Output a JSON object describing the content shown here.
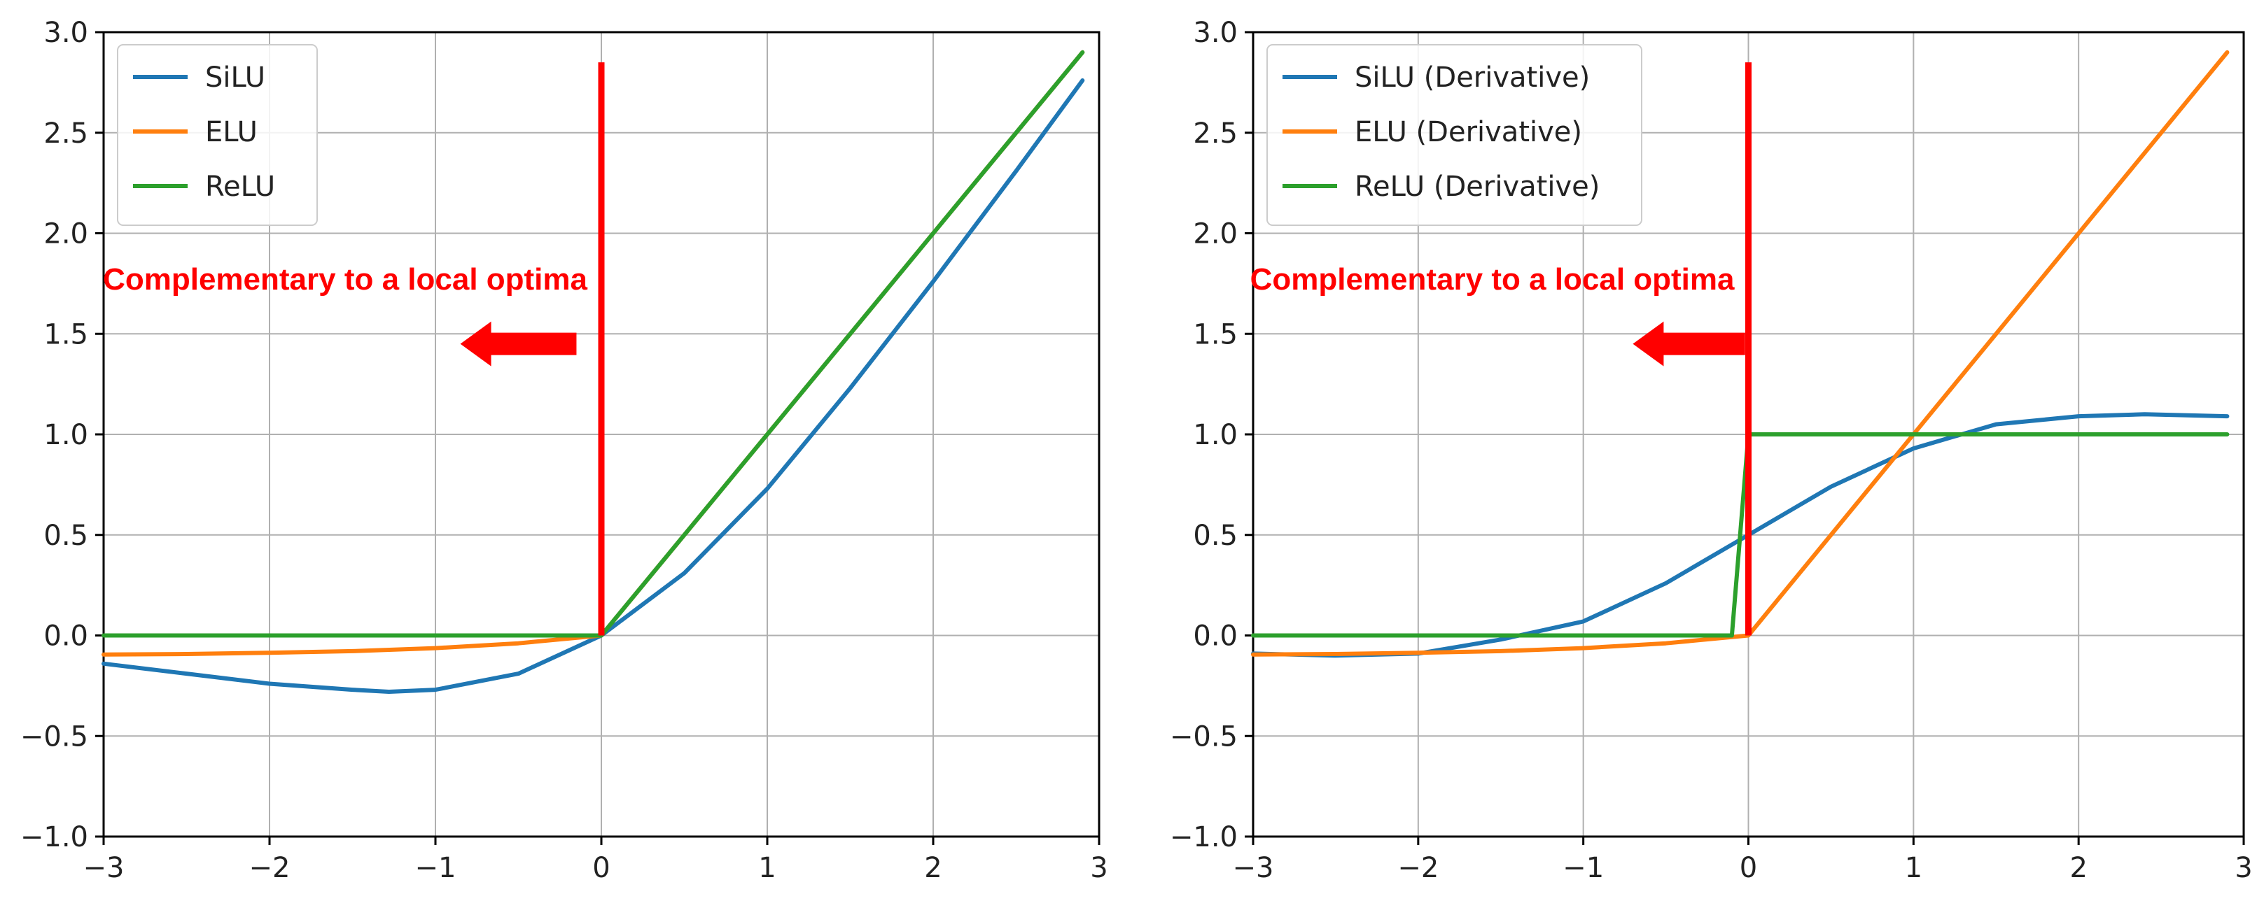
{
  "chart_data": [
    {
      "type": "line",
      "title": "",
      "xlabel": "",
      "ylabel": "",
      "xlim": [
        -3,
        3
      ],
      "ylim": [
        -1.0,
        3.0
      ],
      "xticks": [
        -3,
        -2,
        -1,
        0,
        1,
        2,
        3
      ],
      "xtick_labels": [
        "−3",
        "−2",
        "−1",
        "0",
        "1",
        "2",
        "3"
      ],
      "yticks": [
        -1.0,
        -0.5,
        0.0,
        0.5,
        1.0,
        1.5,
        2.0,
        2.5,
        3.0
      ],
      "ytick_labels": [
        "−1.0",
        "−0.5",
        "0.0",
        "0.5",
        "1.0",
        "1.5",
        "2.0",
        "2.5",
        "3.0"
      ],
      "grid": true,
      "legend_position": "top-left",
      "series": [
        {
          "name": "SiLU",
          "color": "#1f77b4",
          "x": [
            -3,
            -2.5,
            -2,
            -1.5,
            -1.28,
            -1,
            -0.5,
            0,
            0.5,
            1,
            1.5,
            2,
            2.5,
            2.9
          ],
          "y": [
            -0.14,
            -0.19,
            -0.24,
            -0.27,
            -0.28,
            -0.27,
            -0.19,
            0,
            0.31,
            0.73,
            1.23,
            1.76,
            2.31,
            2.76
          ]
        },
        {
          "name": "ELU",
          "color": "#ff7f0e",
          "x": [
            -3,
            -2.5,
            -2,
            -1.5,
            -1,
            -0.5,
            0,
            0.5,
            1,
            1.5,
            2,
            2.5,
            2.9
          ],
          "y": [
            -0.095,
            -0.092,
            -0.086,
            -0.078,
            -0.063,
            -0.039,
            0,
            0.5,
            1,
            1.5,
            2,
            2.5,
            2.9
          ]
        },
        {
          "name": "ReLU",
          "color": "#2ca02c",
          "x": [
            -3,
            0,
            2.9
          ],
          "y": [
            0,
            0,
            2.9
          ]
        }
      ],
      "annotations": [
        {
          "text": "Complementary to a local optima",
          "color": "#ff0000",
          "marker_line_x": 0,
          "marker_line_y": [
            0,
            2.85
          ],
          "arrow_x": [
            -0.15,
            -0.85
          ],
          "arrow_y": 1.45
        }
      ]
    },
    {
      "type": "line",
      "title": "",
      "xlabel": "",
      "ylabel": "",
      "xlim": [
        -3,
        3
      ],
      "ylim": [
        -1.0,
        3.0
      ],
      "xticks": [
        -3,
        -2,
        -1,
        0,
        1,
        2,
        3
      ],
      "xtick_labels": [
        "−3",
        "−2",
        "−1",
        "0",
        "1",
        "2",
        "3"
      ],
      "yticks": [
        -1.0,
        -0.5,
        0.0,
        0.5,
        1.0,
        1.5,
        2.0,
        2.5,
        3.0
      ],
      "ytick_labels": [
        "−1.0",
        "−0.5",
        "0.0",
        "0.5",
        "1.0",
        "1.5",
        "2.0",
        "2.5",
        "3.0"
      ],
      "grid": true,
      "legend_position": "top-left",
      "series": [
        {
          "name": "SiLU (Derivative)",
          "color": "#1f77b4",
          "x": [
            -3,
            -2.5,
            -2,
            -1.5,
            -1,
            -0.5,
            0,
            0.5,
            1,
            1.5,
            2,
            2.4,
            2.9
          ],
          "y": [
            -0.09,
            -0.1,
            -0.09,
            -0.02,
            0.07,
            0.26,
            0.5,
            0.74,
            0.93,
            1.05,
            1.09,
            1.1,
            1.09
          ]
        },
        {
          "name": "ELU (Derivative)",
          "color": "#ff7f0e",
          "x": [
            -3,
            -2.5,
            -2,
            -1.5,
            -1,
            -0.5,
            0,
            0.5,
            1,
            1.5,
            2,
            2.5,
            2.9
          ],
          "y": [
            -0.095,
            -0.092,
            -0.086,
            -0.078,
            -0.063,
            -0.039,
            0,
            0.5,
            1,
            1.5,
            2,
            2.5,
            2.9
          ]
        },
        {
          "name": "ReLU (Derivative)",
          "color": "#2ca02c",
          "x": [
            -3,
            -0.1,
            0,
            2.9
          ],
          "y": [
            0,
            0,
            1,
            1
          ]
        }
      ],
      "annotations": [
        {
          "text": "Complementary to a local optima",
          "color": "#ff0000",
          "marker_line_x": 0,
          "marker_line_y": [
            0,
            2.85
          ],
          "arrow_x": [
            -0.02,
            -0.7
          ],
          "arrow_y": 1.45
        }
      ]
    }
  ]
}
